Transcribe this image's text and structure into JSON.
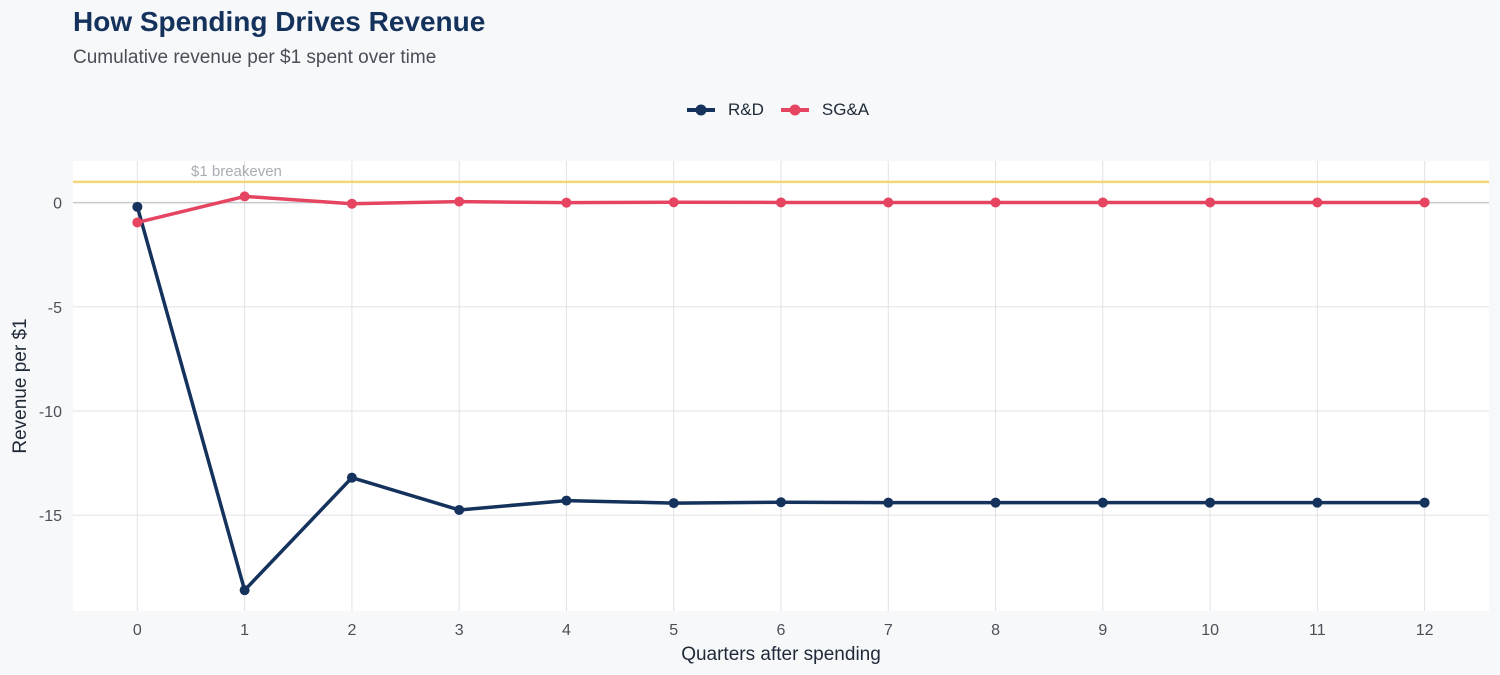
{
  "header": {
    "title": "How Spending Drives Revenue",
    "subtitle": "Cumulative revenue per $1 spent over time"
  },
  "colors": {
    "rd": "#14325c",
    "sga": "#e54561",
    "breakeven": "#f5d57a",
    "grid": "#e0e2e6",
    "zero_line": "#c7c9cd",
    "panel": "#ffffff",
    "background": "#f7f8fa"
  },
  "chart_data": {
    "type": "line",
    "title": "How Spending Drives Revenue",
    "subtitle": "Cumulative revenue per $1 spent over time",
    "xlabel": "Quarters after spending",
    "ylabel": "Revenue per $1",
    "x": [
      0,
      1,
      2,
      3,
      4,
      5,
      6,
      7,
      8,
      9,
      10,
      11,
      12
    ],
    "xlim": [
      -0.6,
      12.6
    ],
    "ylim": [
      -19.6,
      2.0
    ],
    "yticks": [
      0,
      -5,
      -10,
      -15
    ],
    "ytick_labels": [
      "0",
      "-5",
      "-10",
      "-15"
    ],
    "xtick_labels": [
      "0",
      "1",
      "2",
      "3",
      "4",
      "5",
      "6",
      "7",
      "8",
      "9",
      "10",
      "11",
      "12"
    ],
    "series": [
      {
        "name": "R&D",
        "color_key": "rd",
        "values": [
          -0.2,
          -18.6,
          -13.2,
          -14.75,
          -14.3,
          -14.42,
          -14.38,
          -14.4,
          -14.4,
          -14.4,
          -14.4,
          -14.4,
          -14.4
        ]
      },
      {
        "name": "SG&A",
        "color_key": "sga",
        "values": [
          -0.95,
          0.3,
          -0.05,
          0.05,
          0.0,
          0.02,
          0.01,
          0.01,
          0.01,
          0.01,
          0.01,
          0.01,
          0.01
        ]
      }
    ],
    "reference_line": {
      "y": 1,
      "label": "$1 breakeven"
    },
    "grid": true,
    "legend": {
      "position": "top",
      "entries": [
        "R&D",
        "SG&A"
      ]
    }
  }
}
